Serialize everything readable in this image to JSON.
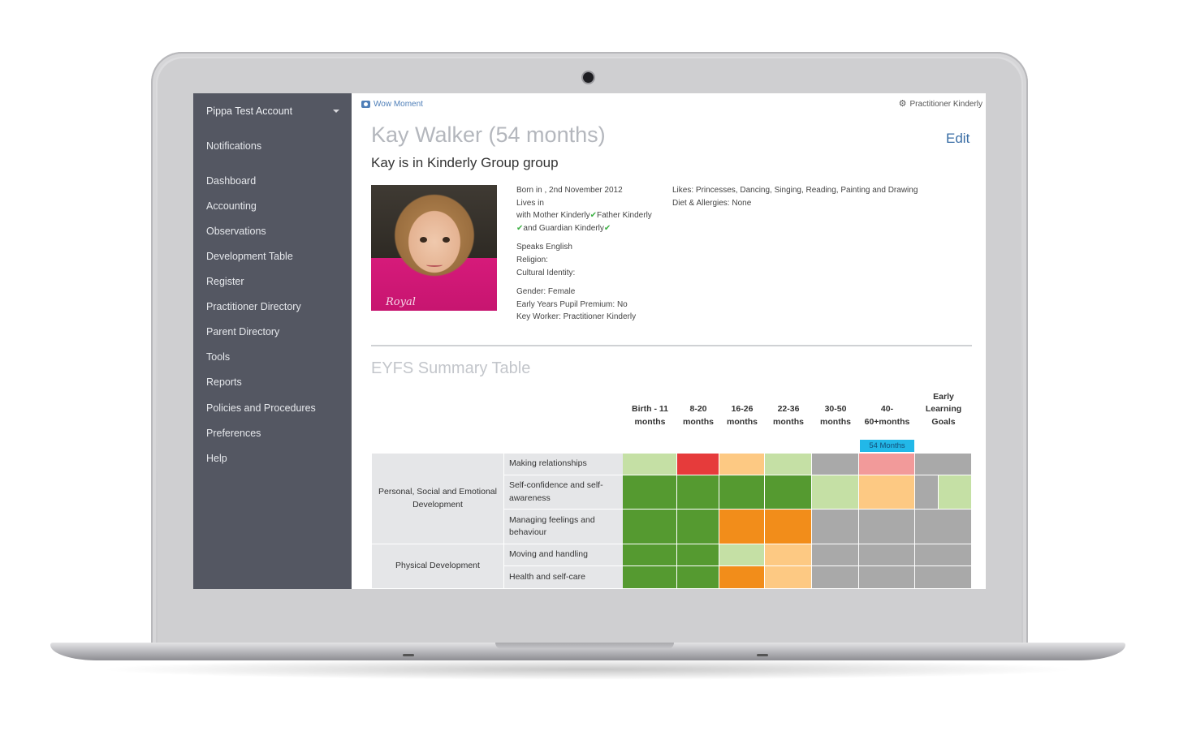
{
  "sidebar": {
    "account": "Pippa Test Account",
    "items": [
      "Notifications",
      "Dashboard",
      "Accounting",
      "Observations",
      "Development Table",
      "Register",
      "Practitioner Directory",
      "Parent Directory",
      "Tools",
      "Reports",
      "Policies and Procedures",
      "Preferences",
      "Help"
    ]
  },
  "topbar": {
    "wow_moment": "Wow Moment",
    "user": "Practitioner Kinderly"
  },
  "child": {
    "name": "Kay Walker (54 months)",
    "group_line": "Kay is in Kinderly Group group",
    "edit": "Edit",
    "born": "Born in , 2nd November 2012",
    "lives_in": "Lives in",
    "with_line": "with Mother Kinderly",
    "father": "Father Kinderly",
    "guardian": "and Guardian Kinderly",
    "speaks": "Speaks English",
    "religion": "Religion:",
    "cultural": "Cultural Identity:",
    "gender": "Gender: Female",
    "premium": "Early Years Pupil Premium: No",
    "key_worker": "Key Worker: Practitioner Kinderly",
    "likes": "Likes: Princesses, Dancing, Singing, Reading, Painting and Drawing",
    "diet": "Diet & Allergies: None",
    "photo_caption": "Royal"
  },
  "eyfs": {
    "title": "EYFS Summary Table",
    "columns": [
      [
        "Birth - 11",
        "months"
      ],
      [
        "8-20",
        "months"
      ],
      [
        "16-26",
        "months"
      ],
      [
        "22-36",
        "months"
      ],
      [
        "30-50",
        "months"
      ],
      [
        "40-",
        "60+months"
      ],
      [
        "Early",
        "Learning",
        "Goals"
      ]
    ],
    "current_age_badge": "54 Months",
    "areas": [
      {
        "name": "Personal, Social and Emotional Development",
        "aspects": [
          "Making relationships",
          "Self-confidence and self-awareness",
          "Managing feelings and behaviour"
        ]
      },
      {
        "name": "Physical Development",
        "aspects": [
          "Moving and handling",
          "Health and self-care"
        ]
      }
    ],
    "rows": [
      [
        "#c5e0a5",
        "#e63b3b",
        "#fdc983",
        "#c5e0a5",
        "#a9a9a9",
        "#f29a9a",
        "#a9a9a9"
      ],
      [
        "#559a30",
        "#559a30",
        "#559a30",
        "#559a30",
        "#c5e0a5",
        "#fdc983",
        "split"
      ],
      [
        "#559a30",
        "#559a30",
        "#f28d1a",
        "#f28d1a",
        "#a9a9a9",
        "#a9a9a9",
        "#a9a9a9"
      ],
      [
        "#559a30",
        "#559a30",
        "#c5e0a5",
        "#fdc983",
        "#a9a9a9",
        "#a9a9a9",
        "#a9a9a9"
      ],
      [
        "#559a30",
        "#559a30",
        "#f28d1a",
        "#fdc983",
        "#a9a9a9",
        "#a9a9a9",
        "#a9a9a9"
      ]
    ],
    "split_colors": [
      "#a9a9a9",
      "#c5e0a5"
    ]
  }
}
